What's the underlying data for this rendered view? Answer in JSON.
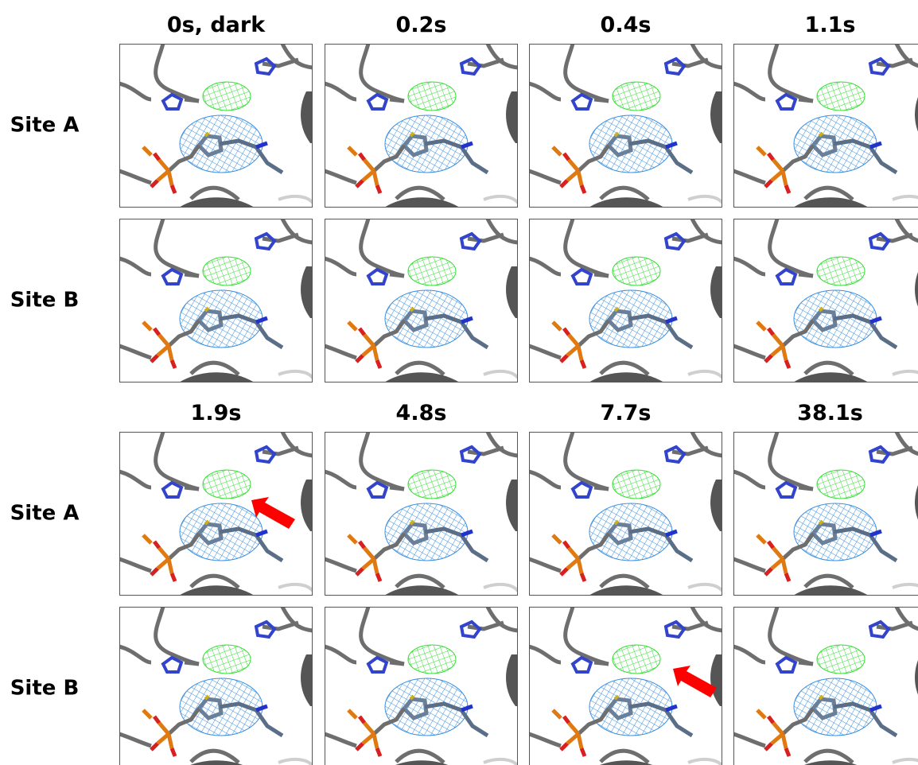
{
  "blocks": [
    {
      "columns": [
        "0s, dark",
        "0.2s",
        "0.4s",
        "1.1s"
      ],
      "rows": [
        "Site A",
        "Site B"
      ]
    },
    {
      "columns": [
        "1.9s",
        "4.8s",
        "7.7s",
        "38.1s"
      ],
      "rows": [
        "Site A",
        "Site B"
      ]
    }
  ]
}
